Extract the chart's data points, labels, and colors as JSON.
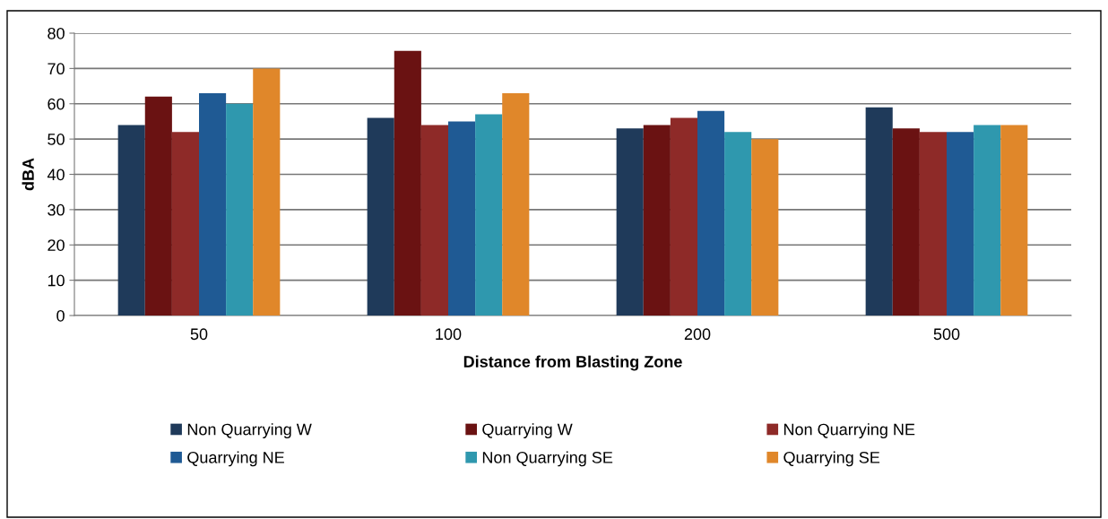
{
  "chart_data": {
    "type": "bar",
    "xlabel": "Distance from Blasting Zone",
    "ylabel": "dBA",
    "categories": [
      "50",
      "100",
      "200",
      "500"
    ],
    "series": [
      {
        "name": "Non Quarrying W",
        "color": "#1f3a5a",
        "values": [
          54,
          56,
          53,
          59
        ]
      },
      {
        "name": "Quarrying W",
        "color": "#6a1212",
        "values": [
          62,
          75,
          54,
          53
        ]
      },
      {
        "name": "Non Quarrying NE",
        "color": "#8e2a28",
        "values": [
          52,
          54,
          56,
          52
        ]
      },
      {
        "name": "Quarrying NE",
        "color": "#1f5a94",
        "values": [
          63,
          55,
          58,
          52
        ]
      },
      {
        "name": "Non Quarrying SE",
        "color": "#2f98ae",
        "values": [
          60,
          57,
          52,
          54
        ]
      },
      {
        "name": "Quarrying SE",
        "color": "#e0872a",
        "values": [
          70,
          63,
          50,
          54
        ]
      }
    ],
    "ylim": [
      0,
      80
    ],
    "yticks": [
      0,
      10,
      20,
      30,
      40,
      50,
      60,
      70,
      80
    ],
    "grid": "y",
    "legend": "bottom"
  }
}
